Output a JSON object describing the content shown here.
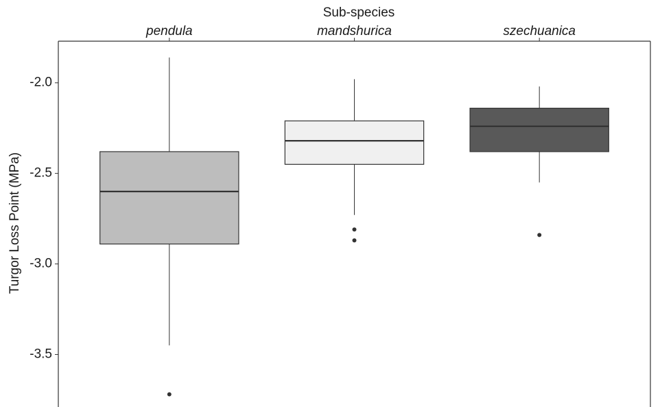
{
  "chart_data": {
    "type": "box",
    "x_label": "Sub-species",
    "y_label": "Turgor Loss Point (MPa)",
    "categories": [
      "pendula",
      "mandshurica",
      "szechuanica"
    ],
    "boxes": [
      {
        "whisker_low": -3.45,
        "q1": -2.89,
        "median": -2.6,
        "q3": -2.38,
        "whisker_high": -1.86,
        "outliers": [
          -3.72
        ],
        "color": "#bdbdbd"
      },
      {
        "whisker_low": -2.73,
        "q1": -2.45,
        "median": -2.32,
        "q3": -2.21,
        "whisker_high": -1.98,
        "outliers": [
          -2.81,
          -2.87
        ],
        "color": "#f0f0f0"
      },
      {
        "whisker_low": -2.55,
        "q1": -2.38,
        "median": -2.24,
        "q3": -2.14,
        "whisker_high": -2.02,
        "outliers": [
          -2.84
        ],
        "color": "#595959"
      }
    ],
    "ylim": [
      -3.79,
      -1.77
    ],
    "yticks": [
      {
        "value": -2,
        "label": "-2.0"
      },
      -2.5,
      {
        "value": -3,
        "label": "-3.0"
      },
      -3.5
    ],
    "x_axis_position": "top",
    "grid": false
  }
}
